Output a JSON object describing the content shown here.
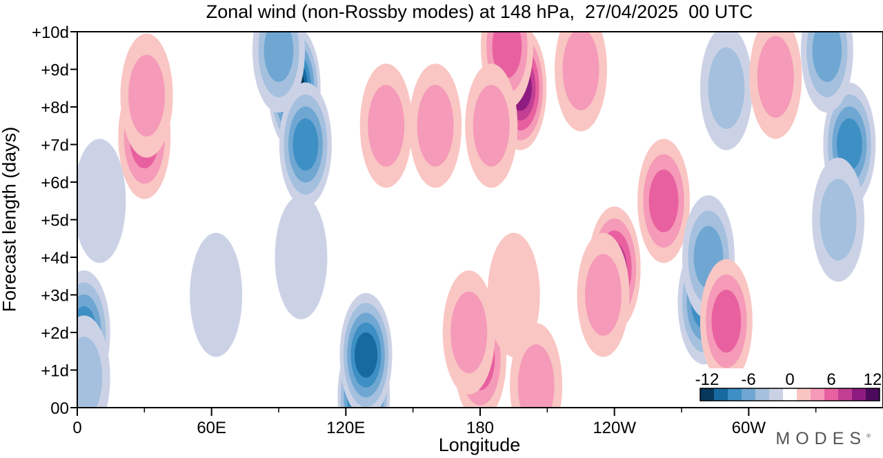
{
  "chart_data": {
    "type": "heatmap",
    "title": "Zonal wind (non-Rossby modes) at 148 hPa,  27/04/2025  00 UTC",
    "xlabel": "Longitude",
    "ylabel": "Forecast length (days)",
    "x_ticks": [
      "0",
      "60E",
      "120E",
      "180",
      "120W",
      "60W"
    ],
    "x_tick_values": [
      0,
      60,
      120,
      180,
      240,
      300
    ],
    "x_range": [
      0,
      360
    ],
    "y_ticks": [
      "00",
      "+1d",
      "+2d",
      "+3d",
      "+4d",
      "+5d",
      "+6d",
      "+7d",
      "+8d",
      "+9d",
      "+10d"
    ],
    "y_range": [
      0,
      10
    ],
    "colorbar": {
      "levels": [
        -12,
        -10,
        -8,
        -6,
        -4,
        -2,
        2,
        4,
        6,
        8,
        10,
        12
      ],
      "labels": [
        "-12",
        "-6",
        "0",
        "6",
        "12"
      ],
      "label_values": [
        -12,
        -6,
        0,
        6,
        12
      ],
      "colors": [
        "#08385c",
        "#176aa0",
        "#3d8fc4",
        "#6fa7d2",
        "#a4c0de",
        "#ccd2e6",
        "#ffffff",
        "#f9c6c3",
        "#f59ab8",
        "#e8609f",
        "#c23f93",
        "#8e1c80",
        "#4b0a5c"
      ]
    },
    "features": [
      {
        "lon": 3,
        "day": 2.0,
        "wind": -7
      },
      {
        "lon": 3,
        "day": 0.8,
        "wind": -4
      },
      {
        "lon": 30,
        "day": 7.2,
        "wind": 6
      },
      {
        "lon": 31,
        "day": 8.3,
        "wind": 4
      },
      {
        "lon": 97,
        "day": 8.5,
        "wind": -11
      },
      {
        "lon": 102,
        "day": 7.0,
        "wind": -8
      },
      {
        "lon": 90,
        "day": 9.5,
        "wind": -5
      },
      {
        "lon": 100,
        "day": 4.0,
        "wind": -2
      },
      {
        "lon": 128,
        "day": 0.3,
        "wind": -12
      },
      {
        "lon": 129,
        "day": 1.4,
        "wind": -10
      },
      {
        "lon": 138,
        "day": 7.5,
        "wind": 4
      },
      {
        "lon": 160,
        "day": 7.5,
        "wind": 3
      },
      {
        "lon": 180,
        "day": 1.3,
        "wind": 6
      },
      {
        "lon": 175,
        "day": 2.0,
        "wind": 3
      },
      {
        "lon": 205,
        "day": 0.6,
        "wind": 4
      },
      {
        "lon": 195,
        "day": 3.0,
        "wind": 2
      },
      {
        "lon": 198,
        "day": 8.5,
        "wind": 9
      },
      {
        "lon": 192,
        "day": 9.6,
        "wind": 6
      },
      {
        "lon": 185,
        "day": 7.5,
        "wind": 3
      },
      {
        "lon": 240,
        "day": 3.7,
        "wind": 8
      },
      {
        "lon": 235,
        "day": 3.0,
        "wind": 4
      },
      {
        "lon": 262,
        "day": 5.5,
        "wind": 5
      },
      {
        "lon": 280,
        "day": 2.8,
        "wind": -8
      },
      {
        "lon": 282,
        "day": 4.0,
        "wind": -5
      },
      {
        "lon": 290,
        "day": 2.3,
        "wind": 5
      },
      {
        "lon": 290,
        "day": 8.5,
        "wind": -4
      },
      {
        "lon": 312,
        "day": 8.8,
        "wind": 3
      },
      {
        "lon": 345,
        "day": 7.0,
        "wind": -7
      },
      {
        "lon": 335,
        "day": 9.5,
        "wind": -5
      },
      {
        "lon": 340,
        "day": 5.0,
        "wind": -4
      },
      {
        "lon": 225,
        "day": 9.0,
        "wind": 3
      },
      {
        "lon": 62,
        "day": 3.0,
        "wind": -2
      },
      {
        "lon": 10,
        "day": 5.5,
        "wind": -2
      }
    ]
  }
}
